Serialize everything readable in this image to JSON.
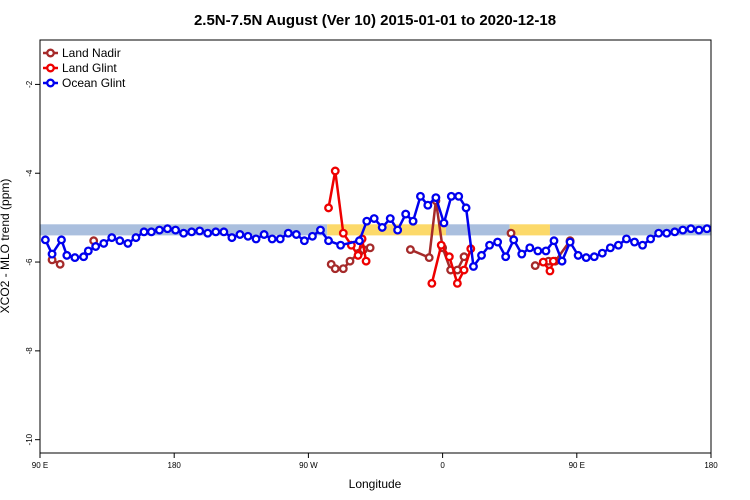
{
  "chart_data": {
    "type": "line",
    "title": "2.5N-7.5N August (Ver 10)   2015-01-01 to 2020-12-18",
    "xlabel": "Longitude",
    "ylabel": "XCO2 - MLO trend (ppm)",
    "xlim": [
      0,
      1
    ],
    "ylim": [
      -10.3,
      -1.0
    ],
    "x_ticks": [
      {
        "pos": 0.0,
        "label": "90 E"
      },
      {
        "pos": 0.2,
        "label": "180"
      },
      {
        "pos": 0.4,
        "label": "90 W"
      },
      {
        "pos": 0.6,
        "label": "0"
      },
      {
        "pos": 0.8,
        "label": "90 E"
      },
      {
        "pos": 1.0,
        "label": "180"
      }
    ],
    "y_ticks": [
      -10,
      -8,
      -6,
      -4,
      -2
    ],
    "legend_position": "top-left",
    "series": [
      {
        "name": "Land Nadir",
        "color": "#a52a2a",
        "x": [
          0.018,
          0.03,
          0.08,
          0.434,
          0.44,
          0.452,
          0.462,
          0.475,
          0.482,
          0.492,
          0.552,
          0.58,
          0.59,
          0.6,
          0.612,
          0.622,
          0.632,
          0.702,
          0.738,
          0.758,
          0.768,
          0.79
        ],
        "y": [
          -5.95,
          -6.05,
          -5.52,
          -6.05,
          -6.15,
          -6.15,
          -5.98,
          -5.8,
          -5.72,
          -5.68,
          -5.72,
          -5.9,
          -4.62,
          -5.68,
          -6.18,
          -6.18,
          -5.88,
          -5.35,
          -6.08,
          -5.98,
          -5.98,
          -5.52
        ]
      },
      {
        "name": "Land Glint",
        "color": "#ee0000",
        "x": [
          0.43,
          0.44,
          0.452,
          0.464,
          0.474,
          0.48,
          0.486,
          0.584,
          0.598,
          0.61,
          0.622,
          0.632,
          0.642,
          0.75,
          0.76,
          0.765
        ],
        "y": [
          -4.78,
          -3.95,
          -5.35,
          -5.62,
          -5.85,
          -5.48,
          -5.98,
          -6.48,
          -5.62,
          -5.88,
          -6.48,
          -6.18,
          -5.7,
          -6.0,
          -6.2,
          -5.98
        ]
      },
      {
        "name": "Ocean Glint",
        "color": "#0000ee",
        "x": [
          0.008,
          0.018,
          0.032,
          0.04,
          0.052,
          0.065,
          0.072,
          0.083,
          0.095,
          0.107,
          0.119,
          0.131,
          0.143,
          0.155,
          0.166,
          0.178,
          0.19,
          0.202,
          0.214,
          0.226,
          0.238,
          0.25,
          0.262,
          0.274,
          0.286,
          0.298,
          0.31,
          0.322,
          0.334,
          0.346,
          0.358,
          0.37,
          0.382,
          0.394,
          0.406,
          0.418,
          0.43,
          0.448,
          0.476,
          0.487,
          0.498,
          0.51,
          0.522,
          0.533,
          0.545,
          0.556,
          0.567,
          0.578,
          0.59,
          0.602,
          0.613,
          0.624,
          0.635,
          0.646,
          0.658,
          0.67,
          0.682,
          0.694,
          0.706,
          0.718,
          0.73,
          0.742,
          0.754,
          0.766,
          0.778,
          0.79,
          0.802,
          0.814,
          0.826,
          0.838,
          0.85,
          0.862,
          0.874,
          0.886,
          0.898,
          0.91,
          0.922,
          0.934,
          0.946,
          0.958,
          0.97,
          0.982,
          0.994
        ],
        "y": [
          -5.5,
          -5.82,
          -5.5,
          -5.85,
          -5.9,
          -5.88,
          -5.75,
          -5.65,
          -5.58,
          -5.45,
          -5.52,
          -5.58,
          -5.45,
          -5.32,
          -5.32,
          -5.28,
          -5.25,
          -5.28,
          -5.35,
          -5.32,
          -5.3,
          -5.35,
          -5.32,
          -5.32,
          -5.45,
          -5.38,
          -5.42,
          -5.48,
          -5.38,
          -5.48,
          -5.48,
          -5.35,
          -5.38,
          -5.52,
          -5.42,
          -5.28,
          -5.52,
          -5.62,
          -5.52,
          -5.08,
          -5.02,
          -5.22,
          -5.02,
          -5.28,
          -4.92,
          -5.08,
          -4.52,
          -4.72,
          -4.55,
          -5.12,
          -4.52,
          -4.52,
          -4.78,
          -6.1,
          -5.85,
          -5.62,
          -5.55,
          -5.88,
          -5.5,
          -5.82,
          -5.68,
          -5.75,
          -5.75,
          -5.52,
          -5.98,
          -5.55,
          -5.85,
          -5.9,
          -5.88,
          -5.8,
          -5.68,
          -5.62,
          -5.48,
          -5.55,
          -5.62,
          -5.48,
          -5.35,
          -5.35,
          -5.32,
          -5.28,
          -5.25,
          -5.28,
          -5.25
        ]
      }
    ]
  }
}
